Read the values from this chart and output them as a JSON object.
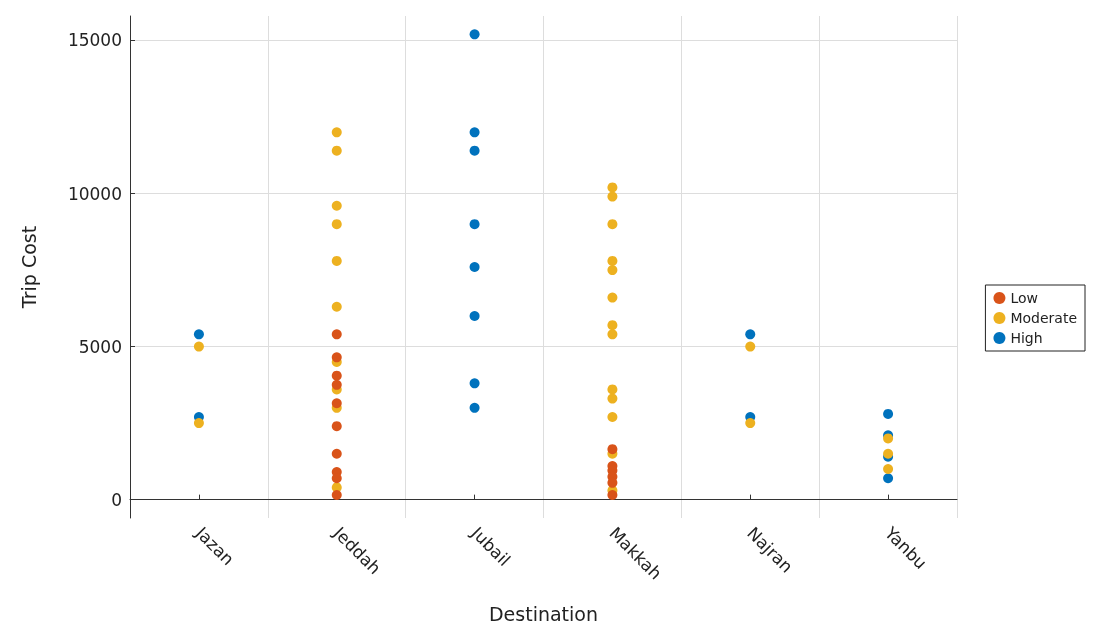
{
  "chart_data": {
    "type": "scatter",
    "xlabel": "Destination",
    "ylabel": "Trip Cost",
    "categories": [
      "Jazan",
      "Jeddah",
      "Jubail",
      "Makkah",
      "Najran",
      "Yanbu"
    ],
    "ylim": [
      -600,
      15800
    ],
    "yticks": [
      0,
      5000,
      10000,
      15000
    ],
    "grid": true,
    "legend": "right",
    "marker": "circle",
    "series": [
      {
        "name": "Low",
        "color": "#d95319",
        "x": [
          "Jeddah",
          "Jeddah",
          "Jeddah",
          "Jeddah",
          "Jeddah",
          "Jeddah",
          "Jeddah",
          "Jeddah",
          "Jeddah",
          "Jeddah",
          "Makkah",
          "Makkah",
          "Makkah",
          "Makkah",
          "Makkah",
          "Makkah"
        ],
        "values": [
          5400,
          4650,
          4050,
          3750,
          3150,
          2400,
          1500,
          900,
          700,
          150,
          1650,
          1100,
          950,
          750,
          550,
          150
        ]
      },
      {
        "name": "Moderate",
        "color": "#edb120",
        "x": [
          "Jazan",
          "Jazan",
          "Jeddah",
          "Jeddah",
          "Jeddah",
          "Jeddah",
          "Jeddah",
          "Jeddah",
          "Jeddah",
          "Jeddah",
          "Jeddah",
          "Jeddah",
          "Makkah",
          "Makkah",
          "Makkah",
          "Makkah",
          "Makkah",
          "Makkah",
          "Makkah",
          "Makkah",
          "Makkah",
          "Makkah",
          "Makkah",
          "Makkah",
          "Makkah",
          "Najran",
          "Najran",
          "Yanbu",
          "Yanbu",
          "Yanbu"
        ],
        "values": [
          5000,
          2500,
          12000,
          11400,
          9600,
          9000,
          7800,
          6300,
          4500,
          3600,
          3000,
          400,
          10200,
          9900,
          9000,
          7800,
          7500,
          6600,
          5700,
          5400,
          3600,
          3300,
          2700,
          1500,
          300,
          5000,
          2500,
          2000,
          1500,
          1000
        ]
      },
      {
        "name": "High",
        "color": "#0072bd",
        "x": [
          "Jazan",
          "Jazan",
          "Jubail",
          "Jubail",
          "Jubail",
          "Jubail",
          "Jubail",
          "Jubail",
          "Jubail",
          "Jubail",
          "Najran",
          "Najran",
          "Yanbu",
          "Yanbu",
          "Yanbu",
          "Yanbu"
        ],
        "values": [
          5400,
          2700,
          15200,
          12000,
          11400,
          9000,
          7600,
          6000,
          3800,
          3000,
          5400,
          2700,
          2800,
          2100,
          1400,
          700
        ]
      }
    ]
  }
}
